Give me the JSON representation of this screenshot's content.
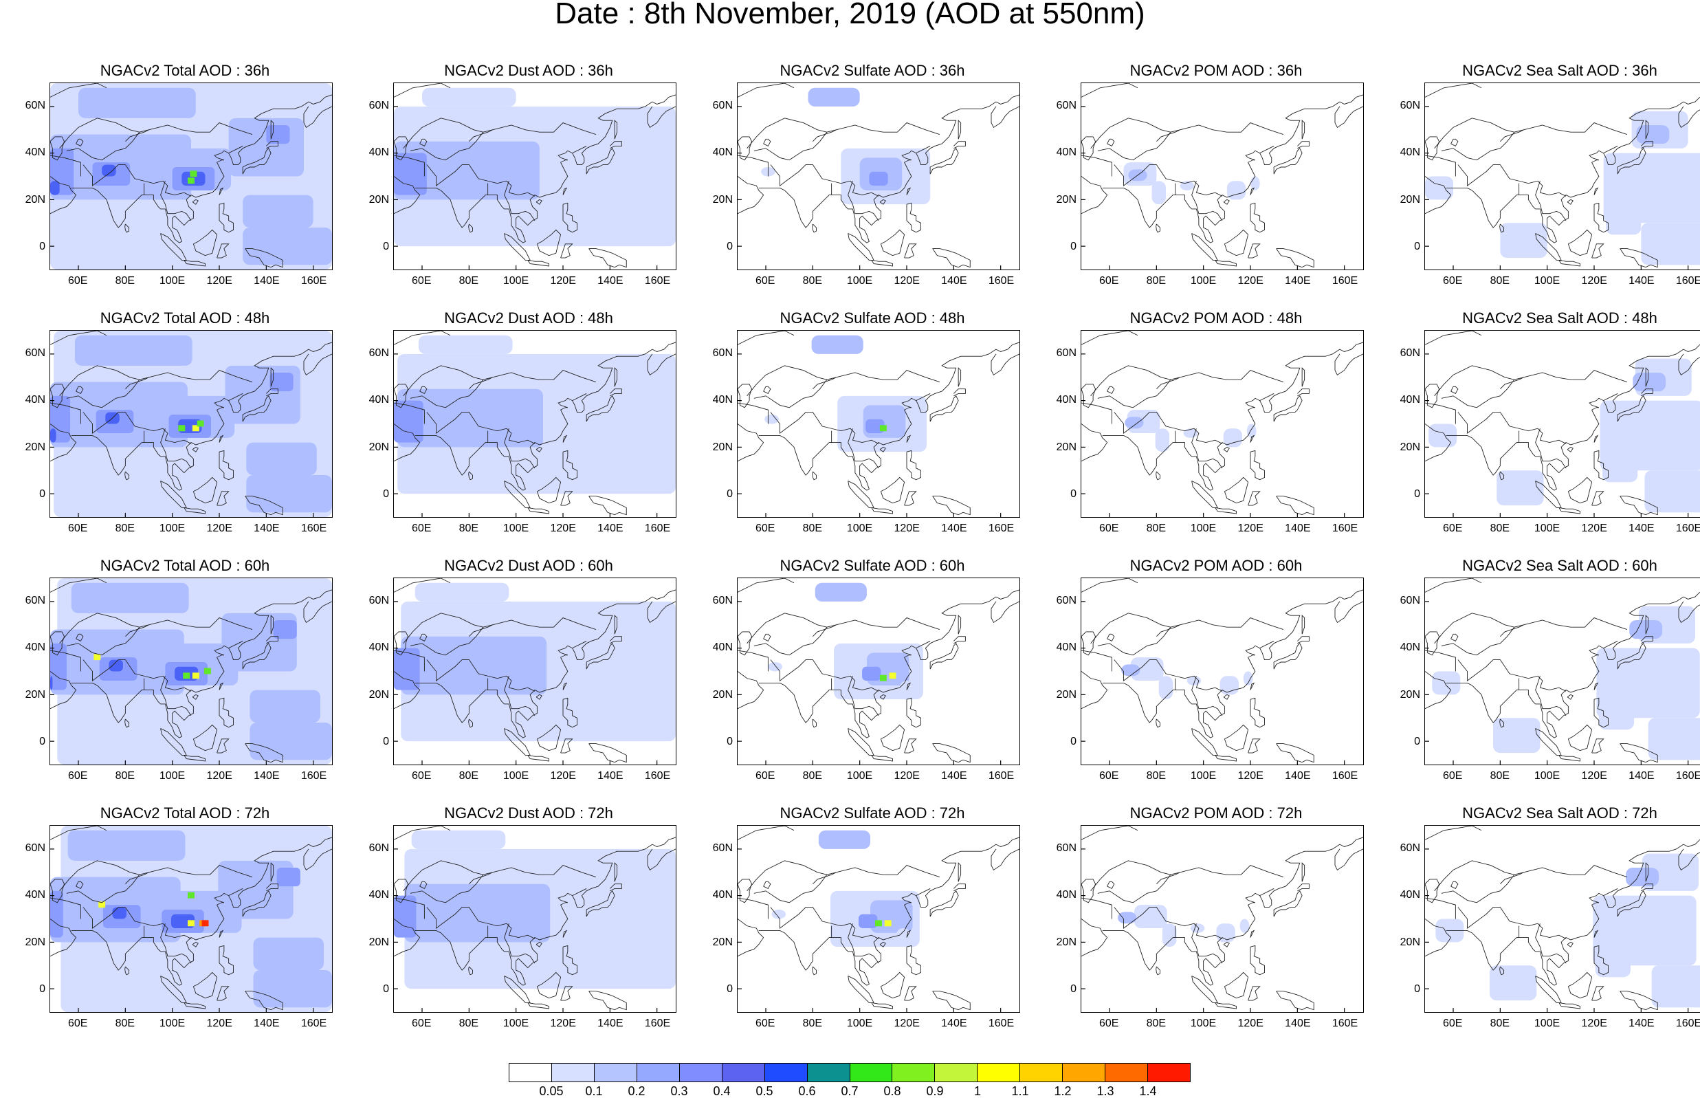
{
  "figure": {
    "title": "Date : 8th November, 2019 (AOD at 550nm)"
  },
  "map_axes": {
    "lat_labels": [
      "60N",
      "40N",
      "20N",
      "0"
    ],
    "lat_values": [
      60,
      40,
      20,
      0
    ],
    "lat_range": [
      -10,
      70
    ],
    "lon_labels": [
      "60E",
      "80E",
      "100E",
      "120E",
      "140E",
      "160E"
    ],
    "lon_values": [
      60,
      80,
      100,
      120,
      140,
      160
    ],
    "lon_range": [
      48,
      168
    ],
    "projection": "cylindrical equidistant",
    "coastlines": "on"
  },
  "panels": [
    {
      "title": "NGACv2 Total AOD : 36h",
      "species": "total",
      "hour": 36
    },
    {
      "title": "NGACv2 Dust AOD : 36h",
      "species": "dust",
      "hour": 36
    },
    {
      "title": "NGACv2 Sulfate AOD : 36h",
      "species": "sulfate",
      "hour": 36
    },
    {
      "title": "NGACv2 POM AOD : 36h",
      "species": "pom",
      "hour": 36
    },
    {
      "title": "NGACv2 Sea Salt AOD : 36h",
      "species": "seasalt",
      "hour": 36
    },
    {
      "title": "NGACv2 Total AOD : 48h",
      "species": "total",
      "hour": 48
    },
    {
      "title": "NGACv2 Dust AOD : 48h",
      "species": "dust",
      "hour": 48
    },
    {
      "title": "NGACv2 Sulfate AOD : 48h",
      "species": "sulfate",
      "hour": 48
    },
    {
      "title": "NGACv2 POM AOD : 48h",
      "species": "pom",
      "hour": 48
    },
    {
      "title": "NGACv2 Sea Salt AOD : 48h",
      "species": "seasalt",
      "hour": 48
    },
    {
      "title": "NGACv2 Total AOD : 60h",
      "species": "total",
      "hour": 60
    },
    {
      "title": "NGACv2 Dust AOD : 60h",
      "species": "dust",
      "hour": 60
    },
    {
      "title": "NGACv2 Sulfate AOD : 60h",
      "species": "sulfate",
      "hour": 60
    },
    {
      "title": "NGACv2 POM AOD : 60h",
      "species": "pom",
      "hour": 60
    },
    {
      "title": "NGACv2 Sea Salt AOD : 60h",
      "species": "seasalt",
      "hour": 60
    },
    {
      "title": "NGACv2 Total AOD : 72h",
      "species": "total",
      "hour": 72
    },
    {
      "title": "NGACv2 Dust AOD : 72h",
      "species": "dust",
      "hour": 72
    },
    {
      "title": "NGACv2 Sulfate AOD : 72h",
      "species": "sulfate",
      "hour": 72
    },
    {
      "title": "NGACv2 POM AOD : 72h",
      "species": "pom",
      "hour": 72
    },
    {
      "title": "NGACv2 Sea Salt  AOD : 72h",
      "species": "seasalt",
      "hour": 72
    }
  ],
  "colorbar": {
    "labels": [
      "0.05",
      "0.1",
      "0.2",
      "0.3",
      "0.4",
      "0.5",
      "0.6",
      "0.7",
      "0.8",
      "0.9",
      "1",
      "1.1",
      "1.2",
      "1.3",
      "1.4"
    ],
    "colors": [
      "#ffffff",
      "#d7e0ff",
      "#b4c5ff",
      "#94a9ff",
      "#7f8dff",
      "#5b63f0",
      "#1f4cff",
      "#0d9090",
      "#33e818",
      "#80f01e",
      "#c3f53a",
      "#ffff00",
      "#ffd300",
      "#ffa600",
      "#ff6a00",
      "#ff1a00"
    ]
  },
  "feature_colors": {
    "light": "#d5deff",
    "medium": "#aebeff",
    "strong": "#8a9dff",
    "high": "#4a62f5",
    "hot_green": "#5fe82a",
    "hot_yellow": "#f4ff2e",
    "hot_orange": "#ff9a00",
    "hot_red": "#ff2a00"
  }
}
